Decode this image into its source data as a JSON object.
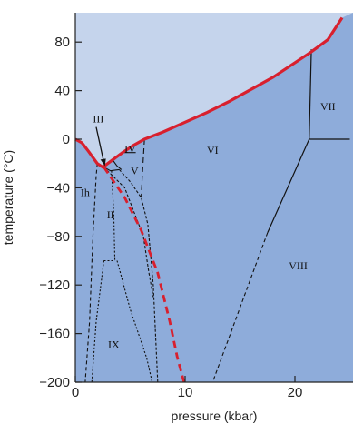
{
  "diagram": {
    "x_axis": {
      "label": "pressure (kbar)",
      "ticks": [
        {
          "value": 0,
          "label": "0"
        },
        {
          "value": 10,
          "label": "10"
        },
        {
          "value": 20,
          "label": "20"
        }
      ],
      "range": [
        0,
        25
      ]
    },
    "y_axis": {
      "label": "temperature (°C)",
      "ticks": [
        {
          "value": 80,
          "label": "80"
        },
        {
          "value": 40,
          "label": "40"
        },
        {
          "value": 0,
          "label": "0"
        },
        {
          "value": -40,
          "label": "−40"
        },
        {
          "value": -80,
          "label": "−80"
        },
        {
          "value": -120,
          "label": "−120"
        },
        {
          "value": -160,
          "label": "−160"
        },
        {
          "value": -200,
          "label": "−200"
        }
      ],
      "range": [
        -200,
        105
      ]
    },
    "phases": [
      {
        "label": "Ih",
        "p": 0.9,
        "t": -47
      },
      {
        "label": "II",
        "p": 3.2,
        "t": -65
      },
      {
        "label": "III",
        "p": 2.1,
        "t": 14
      },
      {
        "label": "IV",
        "p": 5.0,
        "t": -11
      },
      {
        "label": "V",
        "p": 5.4,
        "t": -29
      },
      {
        "label": "VI",
        "p": 12.5,
        "t": -12
      },
      {
        "label": "VII",
        "p": 23.0,
        "t": 24
      },
      {
        "label": "VIII",
        "p": 20.3,
        "t": -107
      },
      {
        "label": "IX",
        "p": 3.5,
        "t": -172
      }
    ],
    "colors": {
      "vapor_region": "#c5d4ec",
      "solid_region": "#8eacda",
      "melting_curve": "#d8202e",
      "boundary": "#111111",
      "metastable": "#d8202e"
    }
  }
}
